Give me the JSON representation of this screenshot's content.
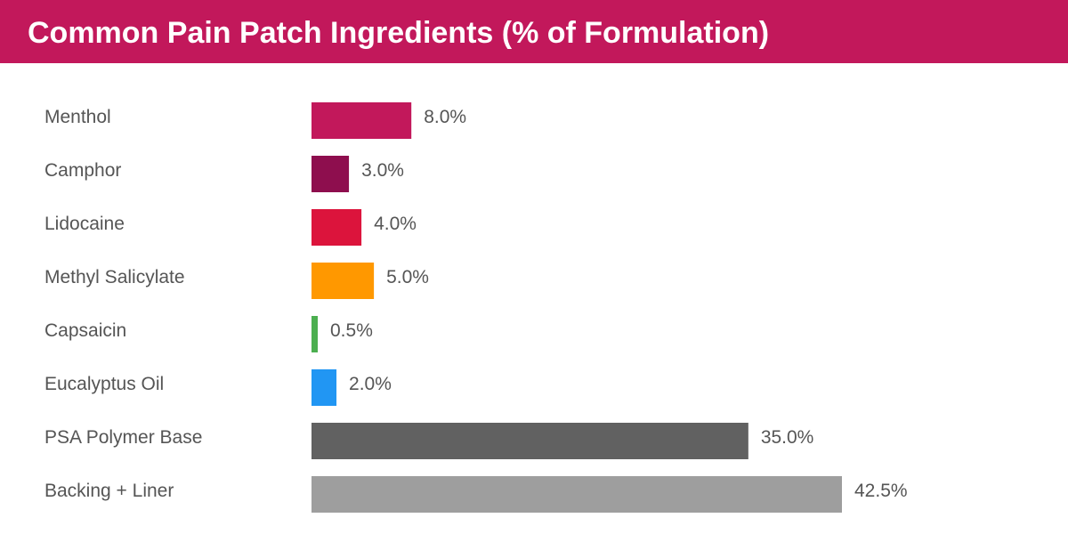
{
  "header": {
    "title": "Common Pain Patch Ingredients (% of Formulation)",
    "color": "#c2185b"
  },
  "chart_data": {
    "type": "bar",
    "orientation": "horizontal",
    "title": "Common Pain Patch Ingredients (% of Formulation)",
    "categories": [
      "Menthol",
      "Camphor",
      "Lidocaine",
      "Methyl Salicylate",
      "Capsaicin",
      "Eucalyptus Oil",
      "PSA Polymer Base",
      "Backing + Liner"
    ],
    "values": [
      8.0,
      3.0,
      4.0,
      5.0,
      0.5,
      2.0,
      35.0,
      42.5
    ],
    "value_labels": [
      "8.0%",
      "3.0%",
      "4.0%",
      "5.0%",
      "0.5%",
      "2.0%",
      "35.0%",
      "42.5%"
    ],
    "colors": [
      "#c2185b",
      "#8e0e4e",
      "#dc143c",
      "#ff9800",
      "#4caf50",
      "#2196f3",
      "#616161",
      "#9e9e9e"
    ],
    "xlim": [
      0,
      42.5
    ],
    "grid": false,
    "legend": "none"
  }
}
